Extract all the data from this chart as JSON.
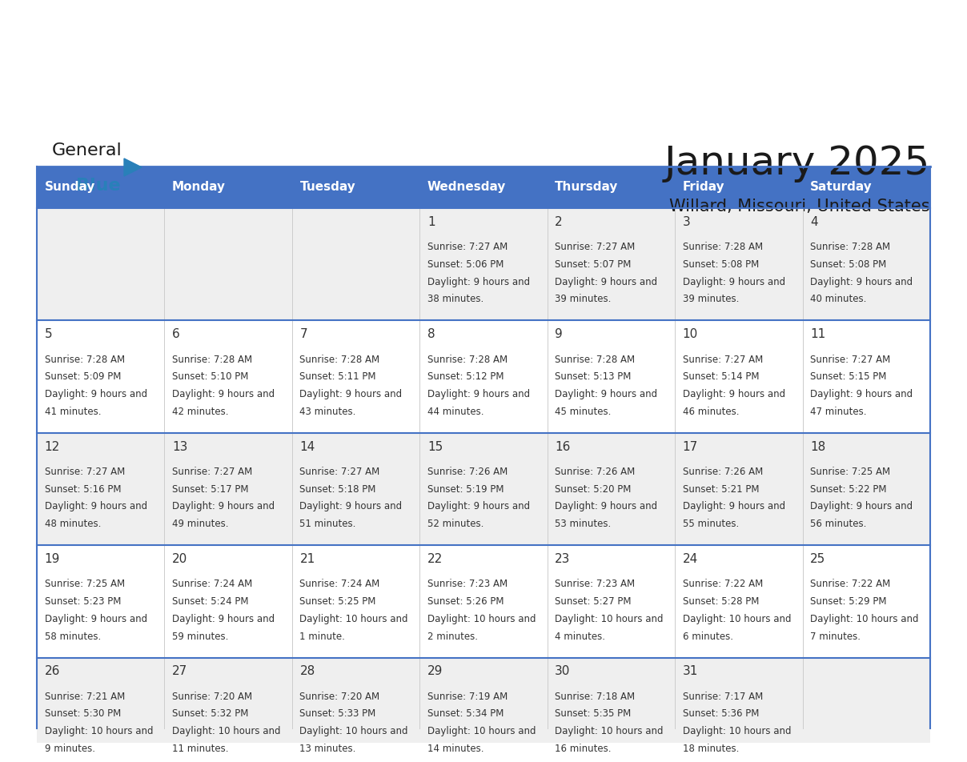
{
  "title": "January 2025",
  "subtitle": "Willard, Missouri, United States",
  "days_of_week": [
    "Sunday",
    "Monday",
    "Tuesday",
    "Wednesday",
    "Thursday",
    "Friday",
    "Saturday"
  ],
  "header_bg": "#4472C4",
  "header_text_color": "#FFFFFF",
  "row_bg_odd": "#EFEFEF",
  "row_bg_even": "#FFFFFF",
  "cell_text_color": "#333333",
  "day_num_color": "#333333",
  "border_color": "#4472C4",
  "calendar_data": [
    [
      {
        "day": "",
        "sunrise": "",
        "sunset": "",
        "daylight": ""
      },
      {
        "day": "",
        "sunrise": "",
        "sunset": "",
        "daylight": ""
      },
      {
        "day": "",
        "sunrise": "",
        "sunset": "",
        "daylight": ""
      },
      {
        "day": "1",
        "sunrise": "7:27 AM",
        "sunset": "5:06 PM",
        "daylight": "9 hours and 38 minutes."
      },
      {
        "day": "2",
        "sunrise": "7:27 AM",
        "sunset": "5:07 PM",
        "daylight": "9 hours and 39 minutes."
      },
      {
        "day": "3",
        "sunrise": "7:28 AM",
        "sunset": "5:08 PM",
        "daylight": "9 hours and 39 minutes."
      },
      {
        "day": "4",
        "sunrise": "7:28 AM",
        "sunset": "5:08 PM",
        "daylight": "9 hours and 40 minutes."
      }
    ],
    [
      {
        "day": "5",
        "sunrise": "7:28 AM",
        "sunset": "5:09 PM",
        "daylight": "9 hours and 41 minutes."
      },
      {
        "day": "6",
        "sunrise": "7:28 AM",
        "sunset": "5:10 PM",
        "daylight": "9 hours and 42 minutes."
      },
      {
        "day": "7",
        "sunrise": "7:28 AM",
        "sunset": "5:11 PM",
        "daylight": "9 hours and 43 minutes."
      },
      {
        "day": "8",
        "sunrise": "7:28 AM",
        "sunset": "5:12 PM",
        "daylight": "9 hours and 44 minutes."
      },
      {
        "day": "9",
        "sunrise": "7:28 AM",
        "sunset": "5:13 PM",
        "daylight": "9 hours and 45 minutes."
      },
      {
        "day": "10",
        "sunrise": "7:27 AM",
        "sunset": "5:14 PM",
        "daylight": "9 hours and 46 minutes."
      },
      {
        "day": "11",
        "sunrise": "7:27 AM",
        "sunset": "5:15 PM",
        "daylight": "9 hours and 47 minutes."
      }
    ],
    [
      {
        "day": "12",
        "sunrise": "7:27 AM",
        "sunset": "5:16 PM",
        "daylight": "9 hours and 48 minutes."
      },
      {
        "day": "13",
        "sunrise": "7:27 AM",
        "sunset": "5:17 PM",
        "daylight": "9 hours and 49 minutes."
      },
      {
        "day": "14",
        "sunrise": "7:27 AM",
        "sunset": "5:18 PM",
        "daylight": "9 hours and 51 minutes."
      },
      {
        "day": "15",
        "sunrise": "7:26 AM",
        "sunset": "5:19 PM",
        "daylight": "9 hours and 52 minutes."
      },
      {
        "day": "16",
        "sunrise": "7:26 AM",
        "sunset": "5:20 PM",
        "daylight": "9 hours and 53 minutes."
      },
      {
        "day": "17",
        "sunrise": "7:26 AM",
        "sunset": "5:21 PM",
        "daylight": "9 hours and 55 minutes."
      },
      {
        "day": "18",
        "sunrise": "7:25 AM",
        "sunset": "5:22 PM",
        "daylight": "9 hours and 56 minutes."
      }
    ],
    [
      {
        "day": "19",
        "sunrise": "7:25 AM",
        "sunset": "5:23 PM",
        "daylight": "9 hours and 58 minutes."
      },
      {
        "day": "20",
        "sunrise": "7:24 AM",
        "sunset": "5:24 PM",
        "daylight": "9 hours and 59 minutes."
      },
      {
        "day": "21",
        "sunrise": "7:24 AM",
        "sunset": "5:25 PM",
        "daylight": "10 hours and 1 minute."
      },
      {
        "day": "22",
        "sunrise": "7:23 AM",
        "sunset": "5:26 PM",
        "daylight": "10 hours and 2 minutes."
      },
      {
        "day": "23",
        "sunrise": "7:23 AM",
        "sunset": "5:27 PM",
        "daylight": "10 hours and 4 minutes."
      },
      {
        "day": "24",
        "sunrise": "7:22 AM",
        "sunset": "5:28 PM",
        "daylight": "10 hours and 6 minutes."
      },
      {
        "day": "25",
        "sunrise": "7:22 AM",
        "sunset": "5:29 PM",
        "daylight": "10 hours and 7 minutes."
      }
    ],
    [
      {
        "day": "26",
        "sunrise": "7:21 AM",
        "sunset": "5:30 PM",
        "daylight": "10 hours and 9 minutes."
      },
      {
        "day": "27",
        "sunrise": "7:20 AM",
        "sunset": "5:32 PM",
        "daylight": "10 hours and 11 minutes."
      },
      {
        "day": "28",
        "sunrise": "7:20 AM",
        "sunset": "5:33 PM",
        "daylight": "10 hours and 13 minutes."
      },
      {
        "day": "29",
        "sunrise": "7:19 AM",
        "sunset": "5:34 PM",
        "daylight": "10 hours and 14 minutes."
      },
      {
        "day": "30",
        "sunrise": "7:18 AM",
        "sunset": "5:35 PM",
        "daylight": "10 hours and 16 minutes."
      },
      {
        "day": "31",
        "sunrise": "7:17 AM",
        "sunset": "5:36 PM",
        "daylight": "10 hours and 18 minutes."
      },
      {
        "day": "",
        "sunrise": "",
        "sunset": "",
        "daylight": ""
      }
    ]
  ],
  "logo_text_general": "General",
  "logo_text_blue": "Blue",
  "logo_general_color": "#1a1a1a",
  "logo_blue_color": "#2980B9",
  "logo_triangle_color": "#2980B9"
}
